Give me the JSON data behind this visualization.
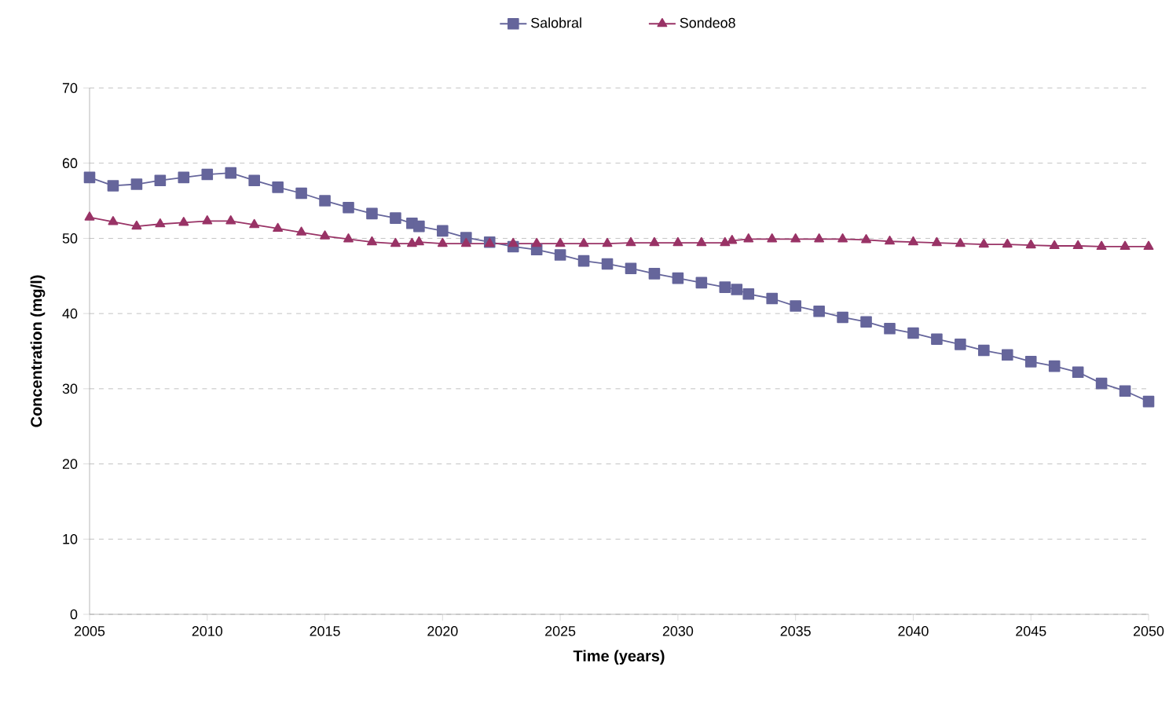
{
  "chart_data": {
    "type": "line",
    "xlabel": "Time (years)",
    "ylabel": "Concentration (mg/l)",
    "xlim": [
      2005,
      2050
    ],
    "xticks": [
      2005,
      2010,
      2015,
      2020,
      2025,
      2030,
      2035,
      2040,
      2045,
      2050
    ],
    "ylim": [
      0,
      70
    ],
    "yticks": [
      0,
      10,
      20,
      30,
      40,
      50,
      60,
      70
    ],
    "grid": "y",
    "legend": "top",
    "line_style": "solid",
    "series": [
      {
        "name": "Salobral",
        "color": "#65659b",
        "marker": "square",
        "x": [
          2005,
          2006,
          2007,
          2008,
          2009,
          2010,
          2011,
          2012,
          2013,
          2014,
          2015,
          2016,
          2017,
          2018,
          2018.7,
          2019,
          2020,
          2021,
          2022,
          2023,
          2024,
          2025,
          2026,
          2027,
          2028,
          2029,
          2030,
          2031,
          2032,
          2032.5,
          2033,
          2034,
          2035,
          2036,
          2037,
          2038,
          2039,
          2040,
          2041,
          2042,
          2043,
          2044,
          2045,
          2046,
          2047,
          2048,
          2049,
          2050
        ],
        "values": [
          58.1,
          57.0,
          57.2,
          57.7,
          58.1,
          58.5,
          58.7,
          57.7,
          56.8,
          56.0,
          55.0,
          54.1,
          53.3,
          52.7,
          52.0,
          51.6,
          51.0,
          50.1,
          49.5,
          48.9,
          48.5,
          47.8,
          47.0,
          46.6,
          46.0,
          45.3,
          44.7,
          44.1,
          43.5,
          43.2,
          42.6,
          42.0,
          41.0,
          40.3,
          39.5,
          38.9,
          38.0,
          37.4,
          36.6,
          35.9,
          35.1,
          34.5,
          33.6,
          33.0,
          32.2,
          30.7,
          29.7,
          28.3
        ]
      },
      {
        "name": "Sondeo8",
        "color": "#993366",
        "marker": "triangle",
        "x": [
          2005,
          2006,
          2007,
          2008,
          2009,
          2010,
          2011,
          2012,
          2013,
          2014,
          2015,
          2016,
          2017,
          2018,
          2018.7,
          2019,
          2020,
          2021,
          2022,
          2023,
          2024,
          2025,
          2026,
          2027,
          2028,
          2029,
          2030,
          2031,
          2032,
          2032.3,
          2033,
          2034,
          2035,
          2036,
          2037,
          2038,
          2039,
          2040,
          2041,
          2042,
          2043,
          2044,
          2045,
          2046,
          2047,
          2048,
          2049,
          2050
        ],
        "values": [
          52.8,
          52.2,
          51.6,
          51.9,
          52.1,
          52.3,
          52.3,
          51.8,
          51.3,
          50.8,
          50.3,
          49.9,
          49.5,
          49.3,
          49.3,
          49.5,
          49.3,
          49.3,
          49.3,
          49.3,
          49.3,
          49.3,
          49.3,
          49.3,
          49.4,
          49.4,
          49.4,
          49.4,
          49.4,
          49.7,
          49.9,
          49.9,
          49.9,
          49.9,
          49.9,
          49.8,
          49.6,
          49.5,
          49.4,
          49.3,
          49.2,
          49.2,
          49.1,
          49.0,
          49.0,
          48.9,
          48.9,
          48.9
        ]
      }
    ]
  }
}
